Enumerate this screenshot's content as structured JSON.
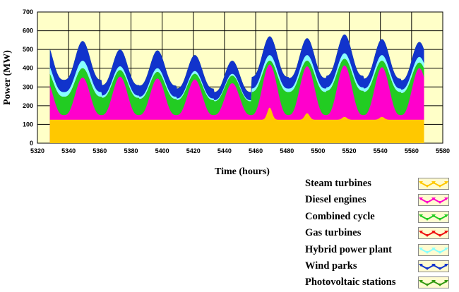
{
  "chart_data": {
    "type": "area",
    "xlabel": "Time (hours)",
    "ylabel": "Power (MW)",
    "xlim": [
      5320,
      5580
    ],
    "ylim": [
      0,
      700
    ],
    "xticks": [
      5320,
      5340,
      5360,
      5380,
      5400,
      5420,
      5440,
      5460,
      5480,
      5500,
      5520,
      5540,
      5560,
      5580
    ],
    "yticks": [
      0,
      100,
      200,
      300,
      400,
      500,
      600,
      700
    ],
    "grid": true,
    "legend_position": "bottom-right",
    "plot_background": "#ffffc8",
    "x_start": 5328,
    "x_end": 5568,
    "daily_peaks": [
      5349,
      5373,
      5397,
      5421,
      5445,
      5469,
      5493,
      5517,
      5541,
      5565
    ],
    "cumulative_peaks_at_daily_peaks": {
      "Steam turbines": [
        125,
        125,
        125,
        125,
        125,
        190,
        160,
        140,
        140,
        125
      ],
      "Diesel engines": [
        350,
        355,
        345,
        340,
        320,
        420,
        410,
        415,
        405,
        400
      ],
      "Combined cycle": [
        400,
        390,
        380,
        370,
        360,
        440,
        440,
        450,
        440,
        430
      ],
      "Gas turbines": [
        400,
        390,
        380,
        370,
        360,
        440,
        440,
        450,
        440,
        430
      ],
      "Hybrid power plant": [
        440,
        410,
        400,
        385,
        370,
        470,
        470,
        480,
        470,
        460
      ],
      "Wind parks": [
        545,
        500,
        495,
        470,
        440,
        570,
        560,
        580,
        555,
        540
      ],
      "Photovoltaic stations": [
        545,
        500,
        495,
        470,
        440,
        570,
        560,
        580,
        555,
        540
      ]
    },
    "series": [
      {
        "name": "Steam turbines",
        "color": "#ffc800"
      },
      {
        "name": "Diesel engines",
        "color": "#ff00cc"
      },
      {
        "name": "Combined cycle",
        "color": "#22cc22"
      },
      {
        "name": "Gas turbines",
        "color": "#ee1111"
      },
      {
        "name": "Hybrid power plant",
        "color": "#88ffff"
      },
      {
        "name": "Wind parks",
        "color": "#1133cc"
      },
      {
        "name": "Photovoltaic stations",
        "color": "#339911"
      }
    ]
  }
}
